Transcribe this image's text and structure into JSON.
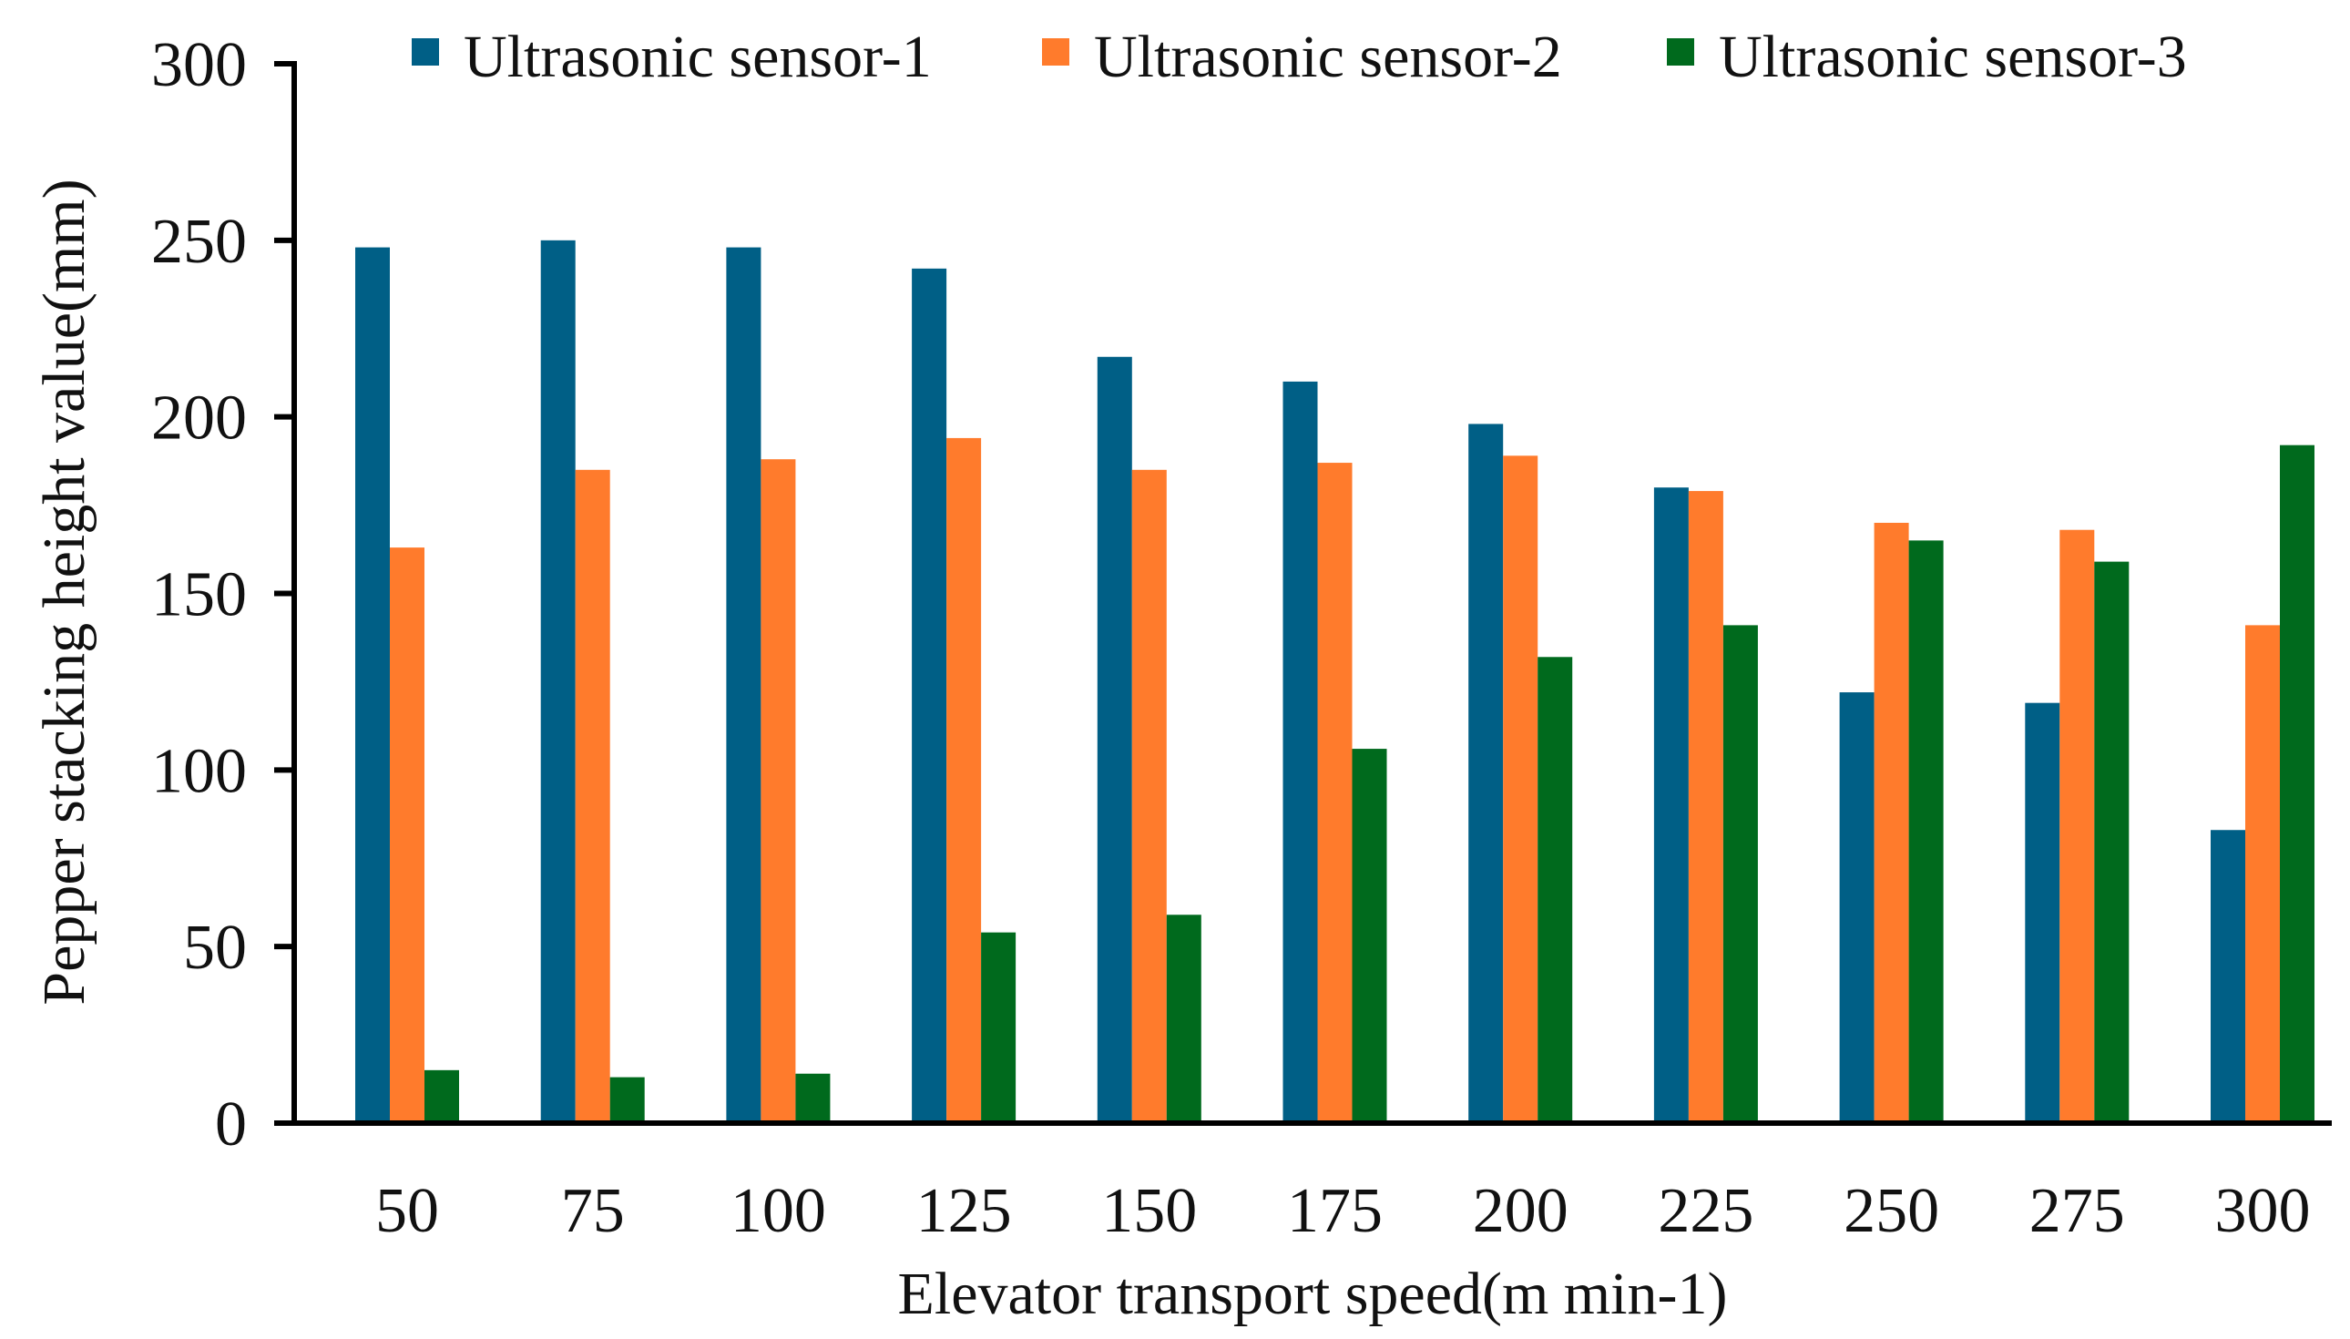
{
  "chart_data": {
    "type": "bar",
    "title": "",
    "xlabel": "Elevator transport speed(m min-1)",
    "ylabel": "Pepper stacking height value(mm)",
    "ylim": [
      0,
      300
    ],
    "yticks": [
      "0",
      "50",
      "100",
      "150",
      "200",
      "250",
      "300"
    ],
    "categories": [
      "50",
      "75",
      "100",
      "125",
      "150",
      "175",
      "200",
      "225",
      "250",
      "275",
      "300"
    ],
    "legend_position": "top",
    "grid": false,
    "series": [
      {
        "name": "Ultrasonic sensor-1",
        "color": "#005f86",
        "values": [
          248,
          250,
          248,
          242,
          217,
          210,
          198,
          180,
          122,
          119,
          83
        ]
      },
      {
        "name": "Ultrasonic sensor-2",
        "color": "#ff7b2c",
        "values": [
          163,
          185,
          188,
          194,
          185,
          187,
          189,
          179,
          170,
          168,
          141
        ]
      },
      {
        "name": "Ultrasonic sensor-3",
        "color": "#006a1d",
        "values": [
          15,
          13,
          14,
          54,
          59,
          106,
          132,
          141,
          165,
          159,
          192
        ]
      }
    ]
  }
}
